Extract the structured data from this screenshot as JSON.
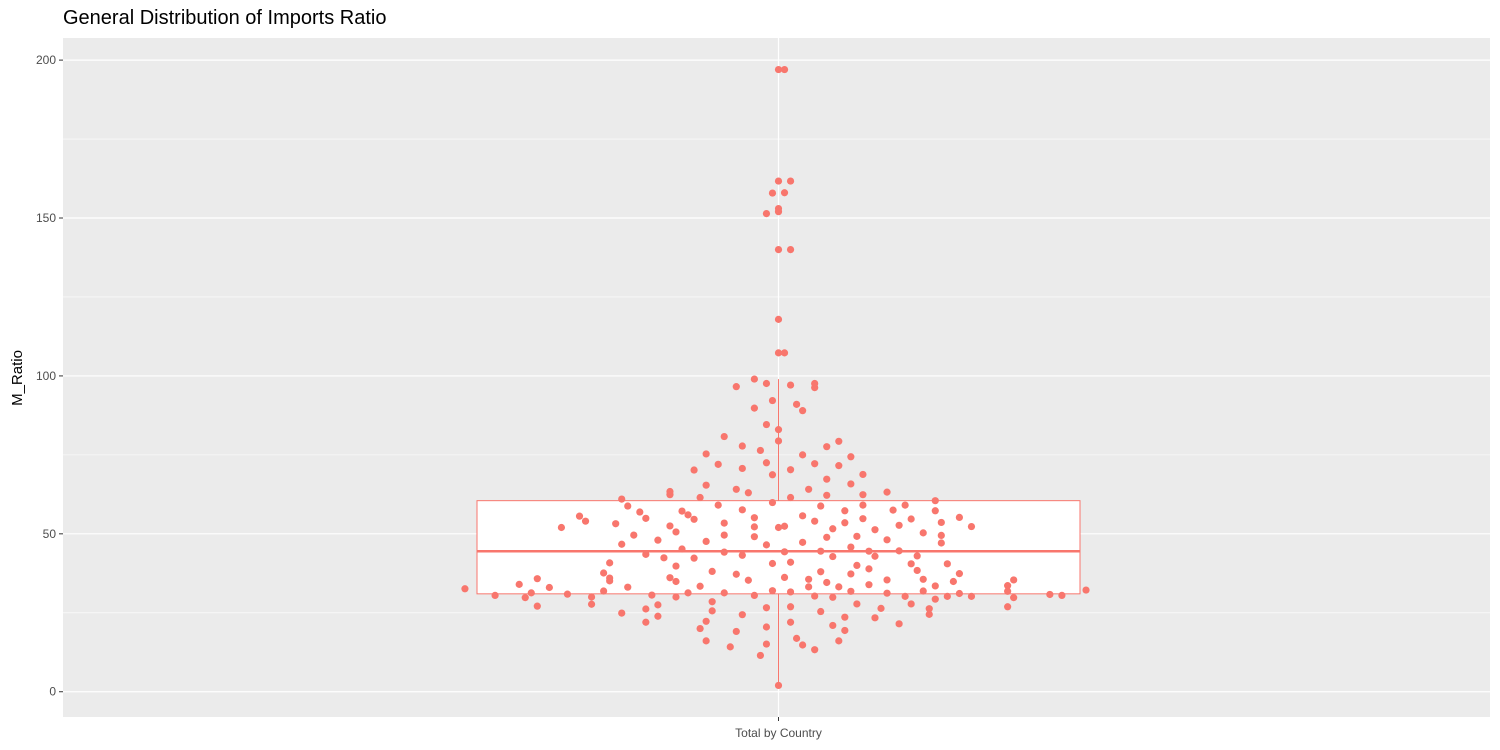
{
  "chart_data": {
    "type": "boxplot",
    "title": "General Distribution of Imports Ratio",
    "xlabel": "",
    "ylabel": "M_Ratio",
    "categories": [
      "Total by Country"
    ],
    "ylim": [
      -8,
      207
    ],
    "yticks": [
      0,
      50,
      100,
      150,
      200
    ],
    "grid": true,
    "colors": {
      "accent": "#f8766d",
      "panel": "#ebebeb",
      "grid": "#ffffff"
    },
    "box": {
      "category": "Total by Country",
      "q1": 31,
      "median": 44.5,
      "q3": 60.5,
      "whisker_low": 2,
      "whisker_high": 99
    },
    "points": [
      [
        -0.52,
        32.6
      ],
      [
        -0.47,
        30.5
      ],
      [
        -0.43,
        34
      ],
      [
        -0.42,
        29.8
      ],
      [
        -0.41,
        31.3
      ],
      [
        -0.4,
        35.8
      ],
      [
        -0.4,
        27.1
      ],
      [
        -0.38,
        33
      ],
      [
        -0.36,
        52
      ],
      [
        -0.35,
        30.9
      ],
      [
        -0.33,
        55.6
      ],
      [
        -0.32,
        54
      ],
      [
        -0.31,
        27.7
      ],
      [
        -0.31,
        30
      ],
      [
        -0.29,
        31.9
      ],
      [
        -0.29,
        37.6
      ],
      [
        -0.28,
        35.1
      ],
      [
        -0.28,
        36
      ],
      [
        -0.28,
        40.8
      ],
      [
        -0.27,
        53.2
      ],
      [
        -0.26,
        61
      ],
      [
        -0.26,
        46.7
      ],
      [
        -0.26,
        24.9
      ],
      [
        -0.25,
        58.8
      ],
      [
        -0.25,
        33.1
      ],
      [
        -0.24,
        49.6
      ],
      [
        -0.23,
        56.9
      ],
      [
        -0.22,
        54.9
      ],
      [
        -0.22,
        43.5
      ],
      [
        -0.22,
        22
      ],
      [
        -0.22,
        26.2
      ],
      [
        -0.21,
        30.6
      ],
      [
        -0.2,
        27.5
      ],
      [
        -0.2,
        23.9
      ],
      [
        -0.2,
        48
      ],
      [
        -0.19,
        42.4
      ],
      [
        -0.18,
        63.4
      ],
      [
        -0.18,
        62.4
      ],
      [
        -0.18,
        52.5
      ],
      [
        -0.18,
        36.1
      ],
      [
        -0.17,
        30
      ],
      [
        -0.17,
        50.6
      ],
      [
        -0.17,
        39.8
      ],
      [
        -0.17,
        34.9
      ],
      [
        -0.16,
        57.2
      ],
      [
        -0.16,
        45.2
      ],
      [
        -0.15,
        31.3
      ],
      [
        -0.15,
        56
      ],
      [
        -0.14,
        54.6
      ],
      [
        -0.14,
        70.2
      ],
      [
        -0.14,
        42.3
      ],
      [
        -0.13,
        61.5
      ],
      [
        -0.13,
        33.4
      ],
      [
        -0.13,
        20
      ],
      [
        -0.12,
        75.3
      ],
      [
        -0.12,
        22.3
      ],
      [
        -0.12,
        16.1
      ],
      [
        -0.12,
        47.6
      ],
      [
        -0.12,
        65.4
      ],
      [
        -0.11,
        28.5
      ],
      [
        -0.11,
        38.1
      ],
      [
        -0.11,
        25.6
      ],
      [
        -0.1,
        72
      ],
      [
        -0.1,
        59.1
      ],
      [
        -0.09,
        80.8
      ],
      [
        -0.09,
        53.4
      ],
      [
        -0.09,
        49.6
      ],
      [
        -0.09,
        44.2
      ],
      [
        -0.09,
        31.3
      ],
      [
        -0.08,
        14.2
      ],
      [
        -0.07,
        64.1
      ],
      [
        -0.07,
        96.6
      ],
      [
        -0.07,
        37.2
      ],
      [
        -0.07,
        19.1
      ],
      [
        -0.06,
        77.8
      ],
      [
        -0.06,
        70.7
      ],
      [
        -0.06,
        57.6
      ],
      [
        -0.06,
        24.4
      ],
      [
        -0.06,
        43.2
      ],
      [
        -0.05,
        63
      ],
      [
        -0.05,
        35.3
      ],
      [
        -0.04,
        52.2
      ],
      [
        -0.04,
        30.5
      ],
      [
        -0.04,
        89.8
      ],
      [
        -0.04,
        55.1
      ],
      [
        -0.04,
        49.1
      ],
      [
        -0.04,
        99
      ],
      [
        -0.03,
        76.4
      ],
      [
        -0.03,
        11.5
      ],
      [
        -0.02,
        97.6
      ],
      [
        -0.02,
        84.6
      ],
      [
        -0.02,
        72.5
      ],
      [
        -0.02,
        46.5
      ],
      [
        -0.02,
        26.6
      ],
      [
        -0.02,
        20.5
      ],
      [
        -0.02,
        15.1
      ],
      [
        -0.02,
        151.4
      ],
      [
        -0.01,
        32
      ],
      [
        -0.01,
        59.9
      ],
      [
        -0.01,
        40.6
      ],
      [
        -0.01,
        68.7
      ],
      [
        -0.01,
        92.2
      ],
      [
        -0.01,
        157.9
      ],
      [
        0.0,
        197
      ],
      [
        0.0,
        79.4
      ],
      [
        0.0,
        52
      ],
      [
        0.0,
        152
      ],
      [
        0.0,
        140
      ],
      [
        0.0,
        107.3
      ],
      [
        0.0,
        117.9
      ],
      [
        0.0,
        161.7
      ],
      [
        0.0,
        153
      ],
      [
        0.0,
        2
      ],
      [
        0.0,
        83
      ],
      [
        0.01,
        52.4
      ],
      [
        0.01,
        158
      ],
      [
        0.01,
        197
      ],
      [
        0.01,
        44.3
      ],
      [
        0.01,
        107.3
      ],
      [
        0.01,
        36.2
      ],
      [
        0.02,
        61.5
      ],
      [
        0.02,
        70.3
      ],
      [
        0.02,
        41
      ],
      [
        0.02,
        26.9
      ],
      [
        0.02,
        22
      ],
      [
        0.02,
        97.1
      ],
      [
        0.02,
        140
      ],
      [
        0.02,
        161.7
      ],
      [
        0.02,
        31.6
      ],
      [
        0.03,
        91
      ],
      [
        0.03,
        16.9
      ],
      [
        0.04,
        55.7
      ],
      [
        0.04,
        89
      ],
      [
        0.04,
        14.8
      ],
      [
        0.04,
        47.3
      ],
      [
        0.04,
        75
      ],
      [
        0.05,
        35.6
      ],
      [
        0.05,
        64.1
      ],
      [
        0.05,
        33.2
      ],
      [
        0.06,
        54
      ],
      [
        0.06,
        96.3
      ],
      [
        0.06,
        72.2
      ],
      [
        0.06,
        97.6
      ],
      [
        0.06,
        30.3
      ],
      [
        0.06,
        13.3
      ],
      [
        0.07,
        44.5
      ],
      [
        0.07,
        58.8
      ],
      [
        0.07,
        38
      ],
      [
        0.07,
        25.4
      ],
      [
        0.08,
        67.3
      ],
      [
        0.08,
        62.2
      ],
      [
        0.08,
        48.9
      ],
      [
        0.08,
        34.6
      ],
      [
        0.08,
        77.6
      ],
      [
        0.09,
        21
      ],
      [
        0.09,
        29.9
      ],
      [
        0.09,
        42.8
      ],
      [
        0.09,
        51.6
      ],
      [
        0.1,
        71.6
      ],
      [
        0.1,
        16.1
      ],
      [
        0.1,
        79.3
      ],
      [
        0.1,
        33.2
      ],
      [
        0.11,
        23.6
      ],
      [
        0.11,
        53.5
      ],
      [
        0.11,
        57.3
      ],
      [
        0.11,
        19.4
      ],
      [
        0.12,
        74.4
      ],
      [
        0.12,
        65.8
      ],
      [
        0.12,
        45.8
      ],
      [
        0.12,
        31.8
      ],
      [
        0.12,
        37.3
      ],
      [
        0.13,
        40
      ],
      [
        0.13,
        49.2
      ],
      [
        0.13,
        27.8
      ],
      [
        0.14,
        68.8
      ],
      [
        0.14,
        59.1
      ],
      [
        0.14,
        54.8
      ],
      [
        0.14,
        62.4
      ],
      [
        0.15,
        33.9
      ],
      [
        0.15,
        44.5
      ],
      [
        0.15,
        38.9
      ],
      [
        0.16,
        23.4
      ],
      [
        0.16,
        51.3
      ],
      [
        0.16,
        42.9
      ],
      [
        0.17,
        26.4
      ],
      [
        0.18,
        63.2
      ],
      [
        0.18,
        35.4
      ],
      [
        0.18,
        48.1
      ],
      [
        0.18,
        31.2
      ],
      [
        0.19,
        57.5
      ],
      [
        0.2,
        21.5
      ],
      [
        0.2,
        52.7
      ],
      [
        0.2,
        44.6
      ],
      [
        0.21,
        59.1
      ],
      [
        0.21,
        30.2
      ],
      [
        0.22,
        54.7
      ],
      [
        0.22,
        40.5
      ],
      [
        0.22,
        27.8
      ],
      [
        0.23,
        43
      ],
      [
        0.23,
        38.4
      ],
      [
        0.24,
        35.6
      ],
      [
        0.24,
        31.9
      ],
      [
        0.24,
        50.3
      ],
      [
        0.25,
        26.3
      ],
      [
        0.25,
        24.5
      ],
      [
        0.26,
        57.3
      ],
      [
        0.26,
        29.3
      ],
      [
        0.26,
        60.5
      ],
      [
        0.26,
        33.5
      ],
      [
        0.27,
        47.1
      ],
      [
        0.27,
        53.6
      ],
      [
        0.27,
        49.5
      ],
      [
        0.28,
        40.5
      ],
      [
        0.28,
        30.2
      ],
      [
        0.29,
        34.9
      ],
      [
        0.3,
        37.4
      ],
      [
        0.3,
        55.2
      ],
      [
        0.3,
        31.1
      ],
      [
        0.32,
        30.2
      ],
      [
        0.32,
        52.3
      ],
      [
        0.38,
        26.9
      ],
      [
        0.38,
        31.8
      ],
      [
        0.38,
        33.6
      ],
      [
        0.39,
        29.8
      ],
      [
        0.39,
        35.4
      ],
      [
        0.45,
        30.8
      ],
      [
        0.47,
        30.5
      ],
      [
        0.51,
        32.2
      ]
    ]
  }
}
